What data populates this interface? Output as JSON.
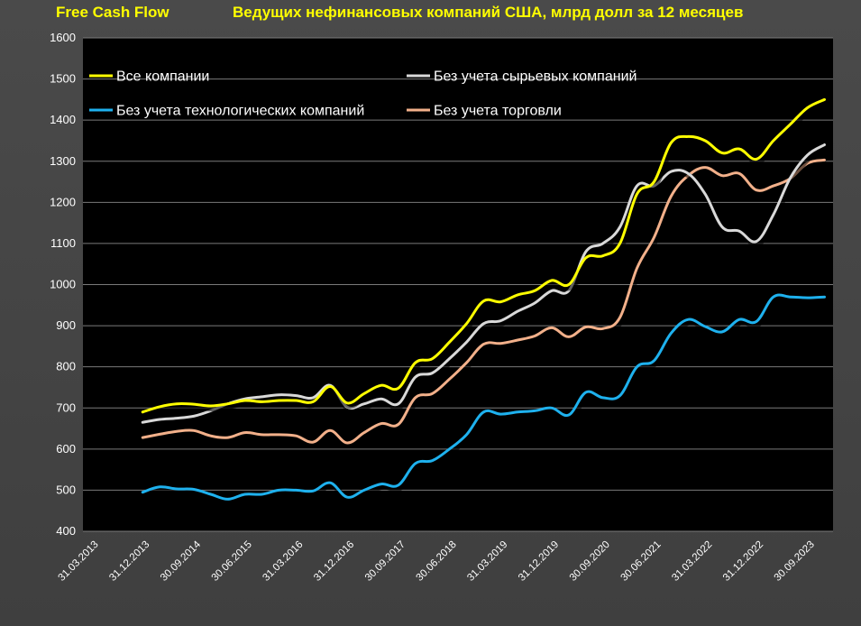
{
  "header": {
    "label_left": "Free Cash Flow",
    "title": "Ведущих нефинансовых компаний США, млрд долл за 12 месяцев"
  },
  "colors": {
    "all": "#ffff00",
    "no_commodity": "#d9d9d9",
    "no_tech": "#1eb1ee",
    "no_retail": "#f2b08a",
    "plot_bg": "#000000",
    "grid": "#7a7a7a"
  },
  "chart_data": {
    "type": "line",
    "title": "Ведущих нефинансовых компаний США, млрд долл за 12 месяцев",
    "ylim": [
      400,
      1600
    ],
    "yticks": [
      400,
      500,
      600,
      700,
      800,
      900,
      1000,
      1100,
      1200,
      1300,
      1400,
      1500,
      1600
    ],
    "grid": true,
    "legend_position": "top",
    "x_tick_labels": [
      "31.03.2013",
      "31.12.2013",
      "30.09.2014",
      "30.06.2015",
      "31.03.2016",
      "31.12.2016",
      "30.09.2017",
      "30.06.2018",
      "31.03.2019",
      "31.12.2019",
      "30.09.2020",
      "30.06.2021",
      "31.03.2022",
      "31.12.2022",
      "30.09.2023"
    ],
    "x": [
      "31.12.2013",
      "31.03.2014",
      "30.06.2014",
      "30.09.2014",
      "31.12.2014",
      "31.03.2015",
      "30.06.2015",
      "30.09.2015",
      "31.12.2015",
      "31.03.2016",
      "30.06.2016",
      "30.09.2016",
      "31.12.2016",
      "31.03.2017",
      "30.06.2017",
      "30.09.2017",
      "31.12.2017",
      "31.03.2018",
      "30.06.2018",
      "30.09.2018",
      "31.12.2018",
      "31.03.2019",
      "30.06.2019",
      "30.09.2019",
      "31.12.2019",
      "31.03.2020",
      "30.06.2020",
      "30.09.2020",
      "31.12.2020",
      "31.03.2021",
      "30.06.2021",
      "30.09.2021",
      "31.12.2021",
      "31.03.2022",
      "30.06.2022",
      "30.09.2022",
      "31.12.2022",
      "31.03.2023",
      "30.06.2023",
      "30.09.2023",
      "31.12.2023"
    ],
    "series": [
      {
        "name": "Все компании",
        "color": "#ffff00",
        "values": [
          690,
          703,
          710,
          709,
          705,
          710,
          718,
          715,
          718,
          718,
          715,
          752,
          712,
          735,
          755,
          748,
          810,
          820,
          860,
          905,
          960,
          958,
          975,
          985,
          1010,
          1000,
          1065,
          1070,
          1100,
          1220,
          1250,
          1345,
          1360,
          1350,
          1320,
          1330,
          1305,
          1350,
          1390,
          1430,
          1450
        ]
      },
      {
        "name": "Без учета сырьевых компаний",
        "color": "#d9d9d9",
        "values": [
          665,
          672,
          675,
          680,
          693,
          710,
          722,
          727,
          732,
          730,
          725,
          755,
          702,
          710,
          722,
          710,
          775,
          785,
          820,
          860,
          905,
          912,
          935,
          955,
          985,
          985,
          1080,
          1100,
          1140,
          1240,
          1240,
          1275,
          1270,
          1220,
          1140,
          1130,
          1105,
          1170,
          1260,
          1315,
          1340
        ]
      },
      {
        "name": "Без учета технологических компаний",
        "color": "#1eb1ee",
        "values": [
          495,
          508,
          503,
          502,
          490,
          478,
          490,
          490,
          500,
          500,
          498,
          518,
          483,
          500,
          515,
          512,
          565,
          572,
          600,
          635,
          690,
          685,
          690,
          693,
          700,
          683,
          738,
          725,
          730,
          800,
          815,
          882,
          915,
          898,
          885,
          915,
          910,
          970,
          970,
          968,
          970
        ]
      },
      {
        "name": "Без учета торговли",
        "color": "#f2b08a",
        "values": [
          628,
          636,
          643,
          645,
          632,
          628,
          640,
          635,
          635,
          632,
          617,
          645,
          615,
          640,
          662,
          660,
          725,
          735,
          770,
          810,
          855,
          857,
          865,
          875,
          895,
          873,
          897,
          893,
          920,
          1040,
          1115,
          1215,
          1265,
          1285,
          1265,
          1270,
          1230,
          1240,
          1258,
          1295,
          1303
        ]
      }
    ]
  }
}
